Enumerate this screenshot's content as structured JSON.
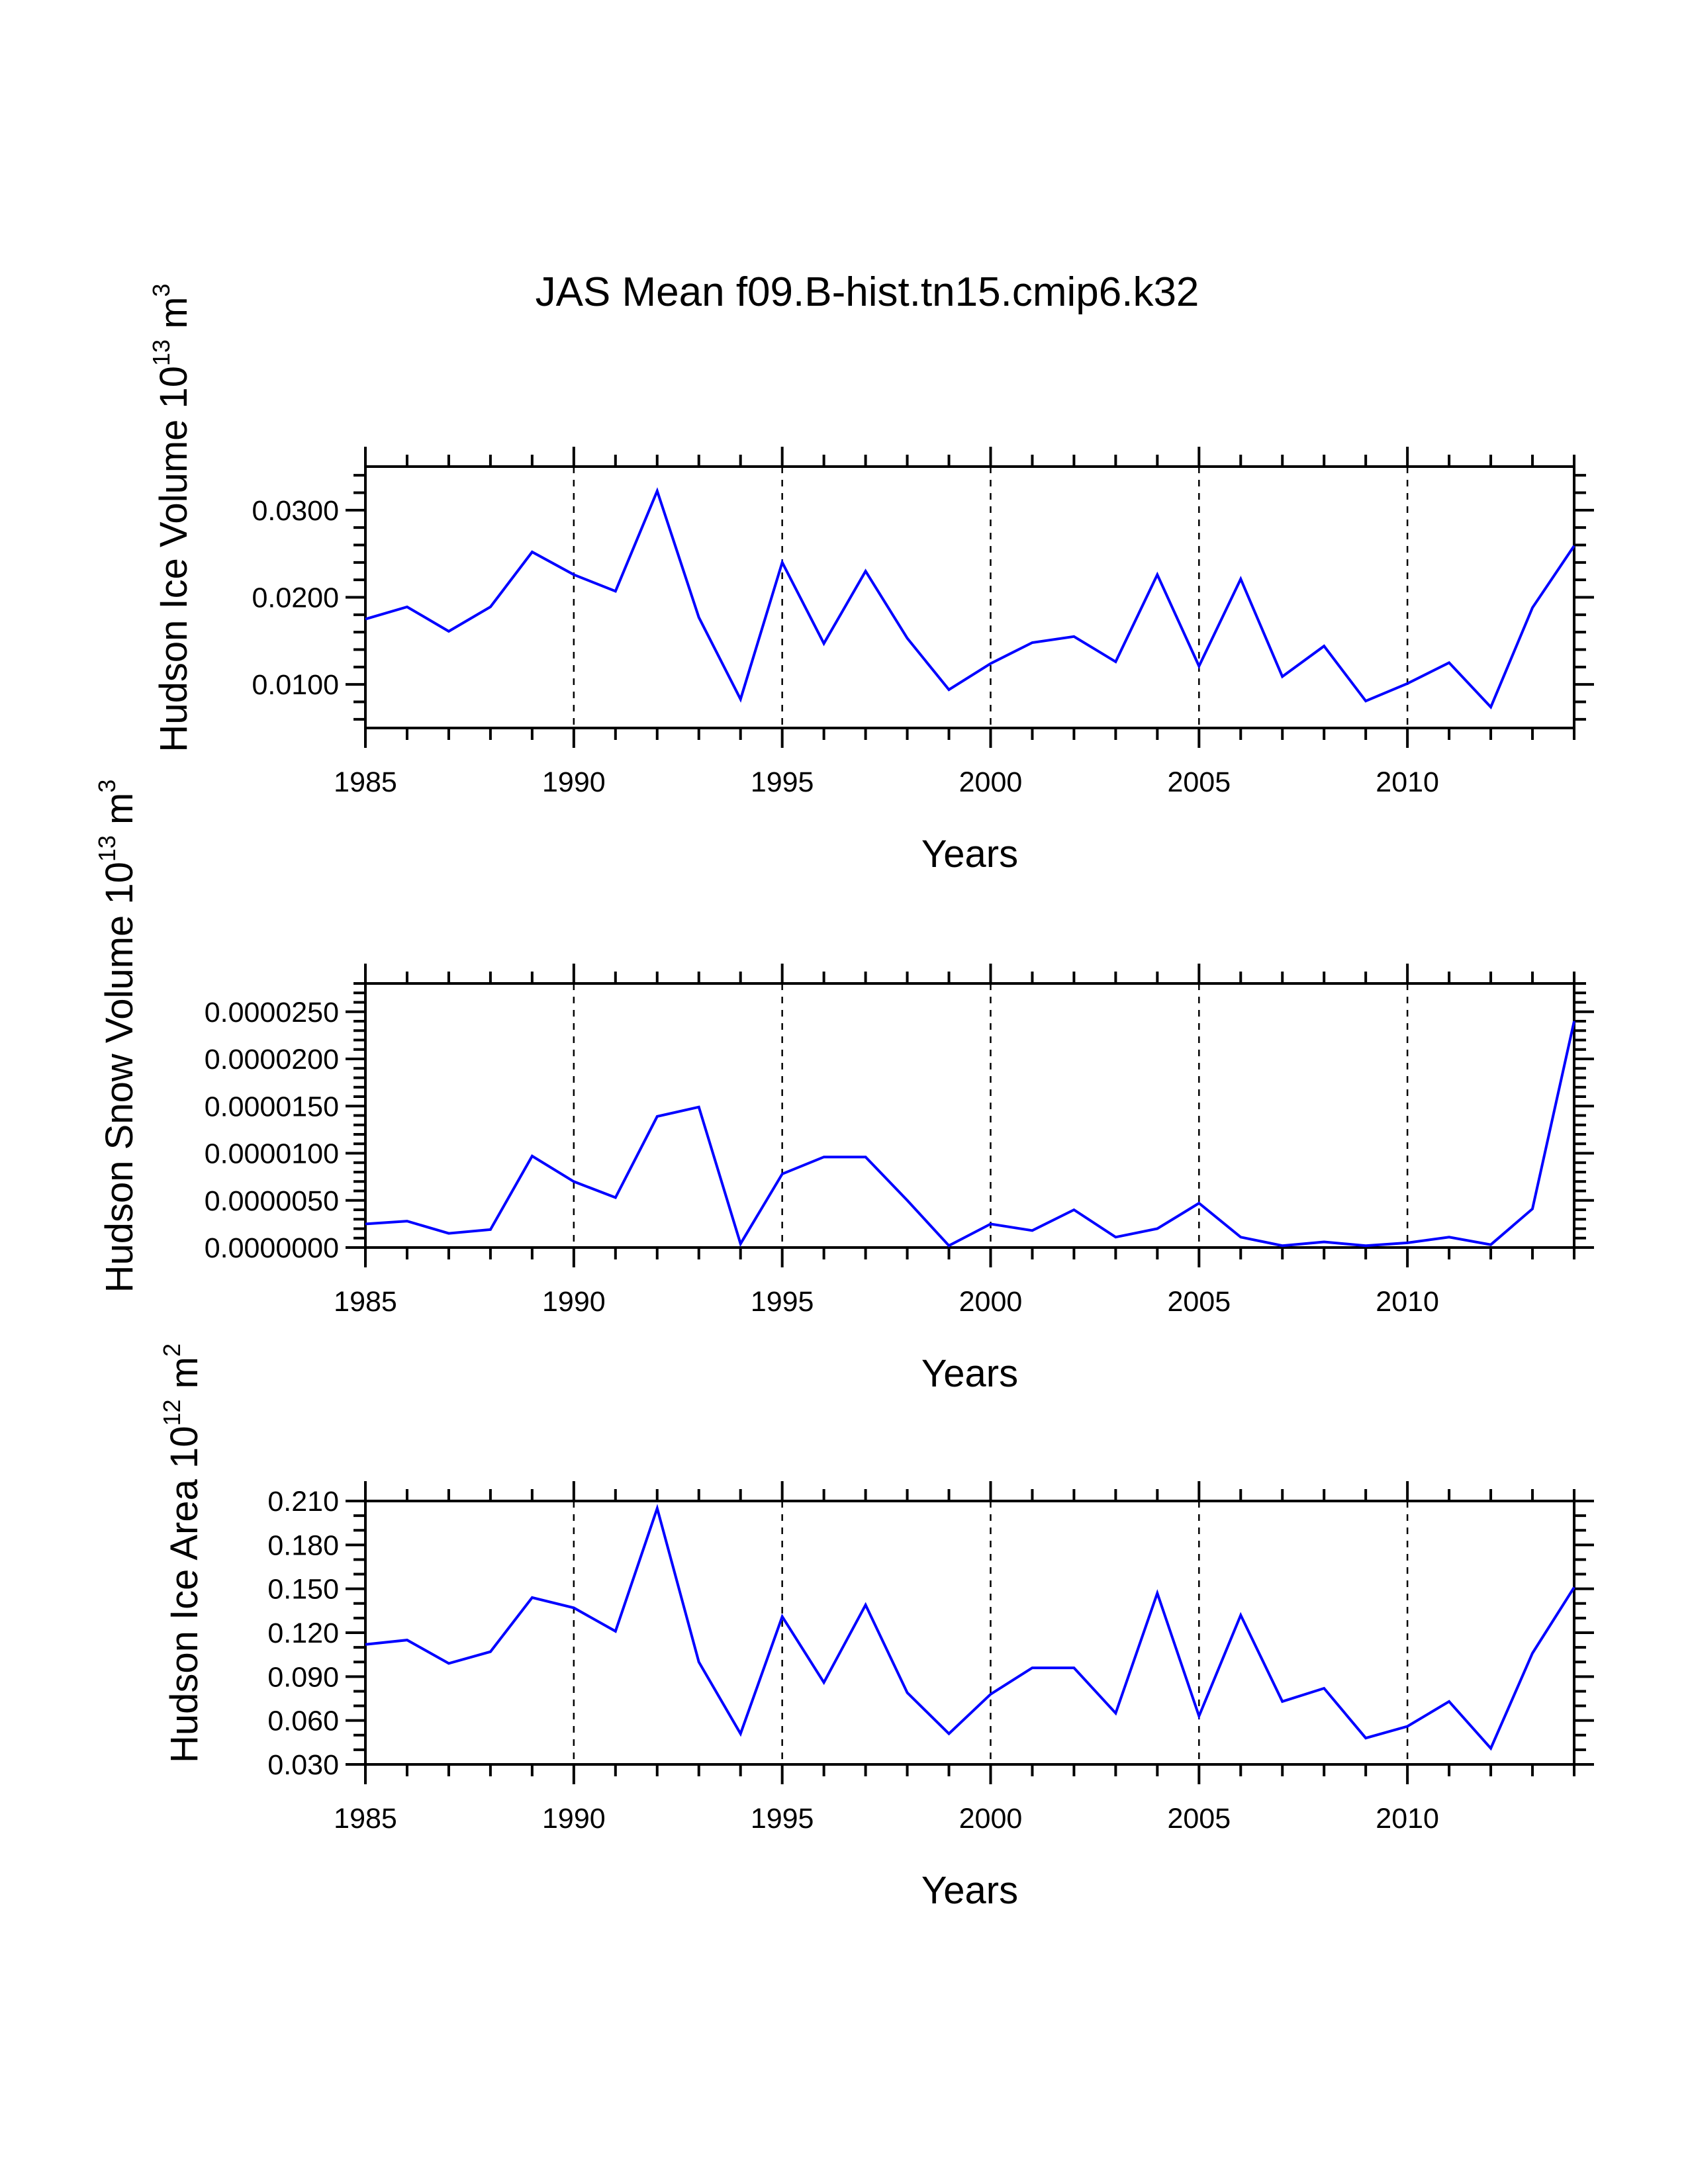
{
  "chart_data": {
    "title": "JAS Mean f09.B-hist.tn15.cmip6.k32",
    "line_color": "#0000ff",
    "panels": [
      {
        "type": "line",
        "ylabel_main": "Hudson Ice Volume 10",
        "ylabel_exp": "13",
        "ylabel_unit": "m",
        "ylabel_unit_exp": "3",
        "xlabel": "Years",
        "xlim": [
          1985,
          2014
        ],
        "ylim": [
          0.005,
          0.035
        ],
        "x_ticks": [
          "1985",
          "1990",
          "1995",
          "2000",
          "2005",
          "2010"
        ],
        "y_ticks": [
          {
            "v": 0.01,
            "label": "0.0100"
          },
          {
            "v": 0.02,
            "label": "0.0200"
          },
          {
            "v": 0.03,
            "label": "0.0300"
          }
        ],
        "y_minor_step": 0.002,
        "x": [
          1985,
          1986,
          1987,
          1988,
          1989,
          1990,
          1991,
          1992,
          1993,
          1994,
          1995,
          1996,
          1997,
          1998,
          1999,
          2000,
          2001,
          2002,
          2003,
          2004,
          2005,
          2006,
          2007,
          2008,
          2009,
          2010,
          2011,
          2012,
          2013,
          2014
        ],
        "values": [
          0.0175,
          0.0189,
          0.0161,
          0.0189,
          0.0252,
          0.0226,
          0.0207,
          0.0322,
          0.0177,
          0.0083,
          0.024,
          0.0147,
          0.023,
          0.0153,
          0.0094,
          0.0124,
          0.0148,
          0.0155,
          0.0126,
          0.0226,
          0.0121,
          0.0221,
          0.0109,
          0.0144,
          0.0081,
          0.0101,
          0.0125,
          0.0074,
          0.0188,
          0.0259
        ]
      },
      {
        "type": "line",
        "ylabel_main": "Hudson Snow Volume 10",
        "ylabel_exp": "13",
        "ylabel_unit": "m",
        "ylabel_unit_exp": "3",
        "xlabel": "Years",
        "xlim": [
          1985,
          2014
        ],
        "ylim": [
          0,
          2.8e-05
        ],
        "x_ticks": [
          "1985",
          "1990",
          "1995",
          "2000",
          "2005",
          "2010"
        ],
        "y_ticks": [
          {
            "v": 0.0,
            "label": "0.0000000"
          },
          {
            "v": 5e-06,
            "label": "0.0000050"
          },
          {
            "v": 1e-05,
            "label": "0.0000100"
          },
          {
            "v": 1.5e-05,
            "label": "0.0000150"
          },
          {
            "v": 2e-05,
            "label": "0.0000200"
          },
          {
            "v": 2.5e-05,
            "label": "0.0000250"
          }
        ],
        "y_minor_step": 1e-06,
        "x": [
          1985,
          1986,
          1987,
          1988,
          1989,
          1990,
          1991,
          1992,
          1993,
          1994,
          1995,
          1996,
          1997,
          1998,
          1999,
          2000,
          2001,
          2002,
          2003,
          2004,
          2005,
          2006,
          2007,
          2008,
          2009,
          2010,
          2011,
          2012,
          2013,
          2014
        ],
        "values": [
          2.5e-06,
          2.8e-06,
          1.5e-06,
          1.9e-06,
          9.7e-06,
          7e-06,
          5.3e-06,
          1.39e-05,
          1.49e-05,
          4e-07,
          7.8e-06,
          9.6e-06,
          9.6e-06,
          5e-06,
          2e-07,
          2.5e-06,
          1.8e-06,
          4e-06,
          1.1e-06,
          2e-06,
          4.7e-06,
          1.1e-06,
          2e-07,
          6e-07,
          2e-07,
          5e-07,
          1.1e-06,
          3e-07,
          4.1e-06,
          2.4e-05
        ]
      },
      {
        "type": "line",
        "ylabel_main": "Hudson Ice Area 10",
        "ylabel_exp": "12",
        "ylabel_unit": "m",
        "ylabel_unit_exp": "2",
        "xlabel": "Years",
        "xlim": [
          1985,
          2014
        ],
        "ylim": [
          0.03,
          0.21
        ],
        "x_ticks": [
          "1985",
          "1990",
          "1995",
          "2000",
          "2005",
          "2010"
        ],
        "y_ticks": [
          {
            "v": 0.03,
            "label": "0.030"
          },
          {
            "v": 0.06,
            "label": "0.060"
          },
          {
            "v": 0.09,
            "label": "0.090"
          },
          {
            "v": 0.12,
            "label": "0.120"
          },
          {
            "v": 0.15,
            "label": "0.150"
          },
          {
            "v": 0.18,
            "label": "0.180"
          },
          {
            "v": 0.21,
            "label": "0.210"
          }
        ],
        "y_minor_step": 0.01,
        "x": [
          1985,
          1986,
          1987,
          1988,
          1989,
          1990,
          1991,
          1992,
          1993,
          1994,
          1995,
          1996,
          1997,
          1998,
          1999,
          2000,
          2001,
          2002,
          2003,
          2004,
          2005,
          2006,
          2007,
          2008,
          2009,
          2010,
          2011,
          2012,
          2013,
          2014
        ],
        "values": [
          0.112,
          0.115,
          0.099,
          0.107,
          0.144,
          0.137,
          0.121,
          0.205,
          0.1,
          0.051,
          0.131,
          0.086,
          0.139,
          0.079,
          0.051,
          0.078,
          0.096,
          0.096,
          0.065,
          0.147,
          0.063,
          0.132,
          0.073,
          0.082,
          0.048,
          0.056,
          0.073,
          0.041,
          0.106,
          0.151
        ]
      }
    ]
  }
}
